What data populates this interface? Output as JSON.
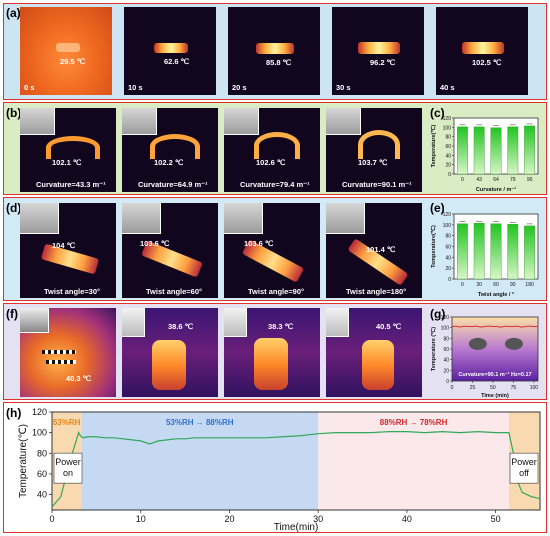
{
  "panel_labels": {
    "a": "(a)",
    "b": "(b)",
    "c": "(c)",
    "d": "(d)",
    "e": "(e)",
    "f": "(f)",
    "g": "(g)",
    "h": "(h)"
  },
  "row_a": [
    {
      "temp": "29.5 ℃",
      "time": "0 s"
    },
    {
      "temp": "62.6 ℃",
      "time": "10 s"
    },
    {
      "temp": "85.8 ℃",
      "time": "20 s"
    },
    {
      "temp": "96.2 ℃",
      "time": "30 s"
    },
    {
      "temp": "102.5 ℃",
      "time": "40 s"
    }
  ],
  "row_b": [
    {
      "temp": "102.1 ℃",
      "caption": "Curvature=43.3 m⁻¹"
    },
    {
      "temp": "102.2 ℃",
      "caption": "Curvature=64.9 m⁻¹"
    },
    {
      "temp": "102.6 ℃",
      "caption": "Curvature=79.4 m⁻¹"
    },
    {
      "temp": "103.7 ℃",
      "caption": "Curvature=90.1 m⁻¹"
    }
  ],
  "row_d": [
    {
      "temp": "104 ℃",
      "caption": "Twist angle=30°"
    },
    {
      "temp": "103.6 ℃",
      "caption": "Twist angle=60°"
    },
    {
      "temp": "103.6 ℃",
      "caption": "Twist angle=90°"
    },
    {
      "temp": "101.4 ℃",
      "caption": "Twist angle=180°"
    }
  ],
  "row_f": [
    {
      "temp": "40.3 ℃"
    },
    {
      "temp": "38.6 ℃"
    },
    {
      "temp": "38.3 ℃"
    },
    {
      "temp": "40.5 ℃"
    }
  ],
  "colors": {
    "border": "#e0312d",
    "bar_top": "#21c421",
    "bar_bottom": "#d8f5c8",
    "line": "#2fa85a",
    "g_line": "#d92020"
  },
  "chart_data": [
    {
      "id": "c",
      "type": "bar",
      "categories": [
        "0",
        "43",
        "64",
        "79",
        "90"
      ],
      "values": [
        101,
        101,
        99,
        101,
        103
      ],
      "xlabel": "Curvature / m⁻¹",
      "ylabel": "Temperature(℃)",
      "ylim": [
        0,
        120
      ],
      "yticks": [
        "0",
        "20",
        "40",
        "60",
        "80",
        "100",
        "120"
      ]
    },
    {
      "id": "e",
      "type": "bar",
      "categories": [
        "0",
        "30",
        "60",
        "90",
        "180"
      ],
      "values": [
        102,
        103,
        102,
        101,
        98
      ],
      "xlabel": "Twist angle / °",
      "ylabel": "Temperature(℃)",
      "ylim": [
        0,
        120
      ],
      "yticks": [
        "0",
        "20",
        "40",
        "60",
        "80",
        "100",
        "120"
      ]
    },
    {
      "id": "g",
      "type": "line",
      "x": [
        0,
        5,
        10,
        15,
        20,
        25,
        30,
        35,
        40,
        45,
        50,
        55,
        60,
        65,
        70,
        75,
        80,
        85,
        90,
        95,
        100,
        105
      ],
      "y": [
        102,
        103,
        101,
        103,
        102,
        102,
        103,
        101,
        102,
        103,
        102,
        102,
        101,
        103,
        102,
        102,
        103,
        101,
        102,
        103,
        102,
        102
      ],
      "annotation": "Curvature=90.1 m⁻¹ Hz=0.17",
      "xlabel": "Time (min)",
      "ylabel": "Temperature (℃)",
      "xlim": [
        0,
        105
      ],
      "ylim": [
        0,
        120
      ],
      "xticks": [
        "0",
        "25",
        "50",
        "75",
        "100"
      ],
      "yticks": [
        "0",
        "20",
        "40",
        "60",
        "80",
        "100",
        "120"
      ]
    },
    {
      "id": "h",
      "type": "line",
      "x": [
        0,
        1,
        2,
        3,
        3.2,
        3.5,
        4,
        5,
        6,
        7,
        8,
        9,
        10,
        11,
        12,
        13,
        14,
        15,
        16,
        18,
        20,
        22,
        24,
        26,
        28,
        30,
        32,
        34,
        36,
        38,
        40,
        42,
        44,
        46,
        48,
        50,
        51.5,
        52,
        52.5,
        53,
        54,
        55
      ],
      "y": [
        28,
        38,
        72,
        100,
        97,
        95,
        96,
        96,
        95,
        95,
        94,
        93,
        92,
        89,
        92,
        93,
        94,
        94,
        95,
        95,
        95,
        95,
        95,
        96,
        97,
        99,
        100,
        100,
        100,
        101,
        101,
        100,
        101,
        100,
        101,
        100,
        100,
        80,
        52,
        42,
        38,
        36
      ],
      "xlabel": "Time(min)",
      "ylabel": "Temperature(℃)",
      "xlim": [
        0,
        55
      ],
      "ylim": [
        25,
        120
      ],
      "xticks": [
        "0",
        "10",
        "20",
        "30",
        "40",
        "50"
      ],
      "yticks": [
        "40",
        "60",
        "80",
        "100",
        "120"
      ],
      "regions": [
        {
          "x0": 0,
          "x1": 3.3,
          "color": "#f9d9b0",
          "label": "53%RH",
          "label_color": "#e5881a"
        },
        {
          "x0": 3.3,
          "x1": 30,
          "color": "#c6d9f3",
          "label": "53%RH → 88%RH",
          "label_color": "#2f6fd0"
        },
        {
          "x0": 30,
          "x1": 51.5,
          "color": "#fbe8ea",
          "label": "88%RH → 78%RH",
          "label_color": "#d0282c"
        },
        {
          "x0": 51.5,
          "x1": 55,
          "color": "#f9d9b0",
          "label": "",
          "label_color": "#000"
        }
      ],
      "annotations": [
        {
          "text": "Power on",
          "at_x": 0
        },
        {
          "text": "Power off",
          "at_x": 55
        }
      ]
    }
  ]
}
